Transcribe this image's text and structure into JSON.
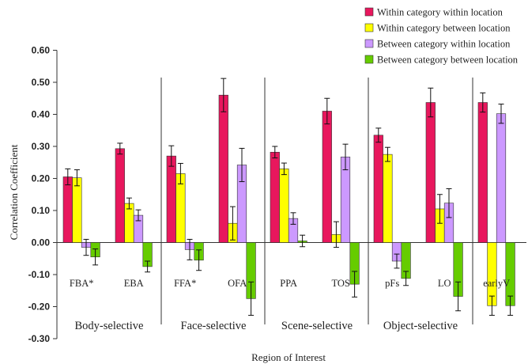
{
  "chart_data": {
    "type": "bar",
    "title": "",
    "xlabel": "Region of Interest",
    "ylabel": "Correlation Coefficient",
    "ylim": [
      -0.3,
      0.6
    ],
    "yticks": [
      "0.60",
      "0.50",
      "0.40",
      "0.30",
      "0.20",
      "0.10",
      "0.00",
      "-0.10",
      "-0.20",
      "-0.30"
    ],
    "grid": false,
    "legend_position": "top-right",
    "categories": [
      "FBA*",
      "EBA",
      "FFA*",
      "OFA",
      "PPA",
      "TOS",
      "pFs",
      "LO",
      "earlyV"
    ],
    "groups": [
      {
        "label": "Body-selective",
        "categories": [
          "FBA*",
          "EBA"
        ]
      },
      {
        "label": "Face-selective",
        "categories": [
          "FFA*",
          "OFA"
        ]
      },
      {
        "label": "Scene-selective",
        "categories": [
          "PPA",
          "TOS"
        ]
      },
      {
        "label": "Object-selective",
        "categories": [
          "pFs",
          "LO"
        ]
      }
    ],
    "series": [
      {
        "name": "Within category within location",
        "color": "#e8175d",
        "values": [
          0.205,
          0.293,
          0.27,
          0.46,
          0.282,
          0.41,
          0.335,
          0.437,
          0.437
        ],
        "errors": [
          0.025,
          0.017,
          0.032,
          0.052,
          0.018,
          0.04,
          0.022,
          0.045,
          0.03
        ]
      },
      {
        "name": "Within category between location",
        "color": "#ffff00",
        "values": [
          0.202,
          0.122,
          0.215,
          0.06,
          0.23,
          0.025,
          0.275,
          0.105,
          -0.197
        ],
        "errors": [
          0.025,
          0.017,
          0.032,
          0.052,
          0.018,
          0.04,
          0.022,
          0.045,
          0.03
        ]
      },
      {
        "name": "Between category within location",
        "color": "#cc99ff",
        "values": [
          -0.015,
          0.085,
          -0.022,
          0.242,
          0.075,
          0.267,
          -0.058,
          0.123,
          0.402
        ],
        "errors": [
          0.025,
          0.017,
          0.032,
          0.052,
          0.018,
          0.04,
          0.022,
          0.045,
          0.03
        ]
      },
      {
        "name": "Between category between location",
        "color": "#66cc00",
        "values": [
          -0.045,
          -0.075,
          -0.055,
          -0.175,
          0.005,
          -0.13,
          -0.112,
          -0.168,
          -0.197
        ],
        "errors": [
          0.025,
          0.017,
          0.032,
          0.052,
          0.018,
          0.04,
          0.022,
          0.045,
          0.03
        ]
      }
    ]
  }
}
